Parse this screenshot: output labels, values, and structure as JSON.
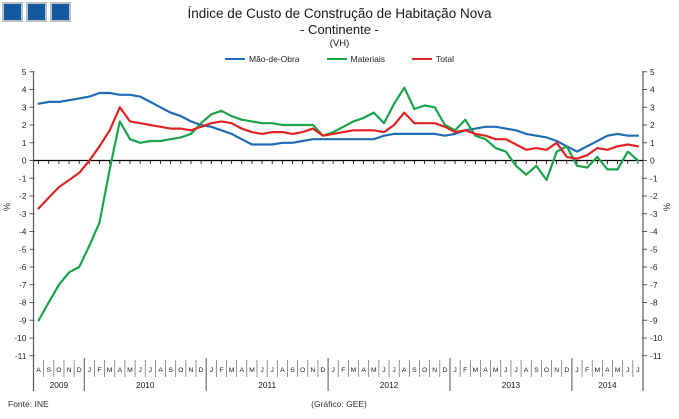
{
  "logo": {
    "square_color": "#14599e",
    "square_border_color": "#b6c2cc",
    "count": 3
  },
  "title": {
    "line1": "Índice de Custo de Construção de Habitação Nova",
    "line2": "- Continente -",
    "line3": "(VH)"
  },
  "footer": {
    "source": "Fonte: INE",
    "credit": "(Gráfico: GEE)"
  },
  "chart_data": {
    "type": "line",
    "title": "Índice de Custo de Construção de Habitação Nova - Continente - (VH)",
    "ylabel": "%",
    "ylim": [
      -11,
      5
    ],
    "ytick_step": 1,
    "grid": false,
    "legend_position": "top",
    "axis_color": "#595959",
    "zero_line_color": "#000000",
    "x_axis": {
      "months": [
        "A",
        "S",
        "O",
        "N",
        "D",
        "J",
        "F",
        "M",
        "A",
        "M",
        "J",
        "J",
        "A",
        "S",
        "O",
        "N",
        "D",
        "J",
        "F",
        "M",
        "A",
        "M",
        "J",
        "J",
        "A",
        "S",
        "O",
        "N",
        "D",
        "J",
        "F",
        "M",
        "A",
        "M",
        "J",
        "J",
        "A",
        "S",
        "O",
        "N",
        "D",
        "J",
        "F",
        "M",
        "A",
        "M",
        "J",
        "J",
        "A",
        "S",
        "O",
        "N",
        "D",
        "J",
        "F",
        "M",
        "A",
        "M",
        "J",
        "J"
      ],
      "years": [
        {
          "label": "2009",
          "months": 5
        },
        {
          "label": "2010",
          "months": 12
        },
        {
          "label": "2011",
          "months": 12
        },
        {
          "label": "2012",
          "months": 12
        },
        {
          "label": "2013",
          "months": 12
        },
        {
          "label": "2014",
          "months": 7
        }
      ]
    },
    "series": [
      {
        "name": "Mão-de-Obra",
        "color": "#1F6CB4",
        "values": [
          3.2,
          3.3,
          3.3,
          3.4,
          3.5,
          3.6,
          3.8,
          3.8,
          3.7,
          3.7,
          3.6,
          3.3,
          3.0,
          2.7,
          2.5,
          2.2,
          2.0,
          1.9,
          1.7,
          1.5,
          1.2,
          0.9,
          0.9,
          0.9,
          1.0,
          1.0,
          1.1,
          1.2,
          1.2,
          1.2,
          1.2,
          1.2,
          1.2,
          1.2,
          1.4,
          1.5,
          1.5,
          1.5,
          1.5,
          1.5,
          1.4,
          1.5,
          1.7,
          1.8,
          1.9,
          1.9,
          1.8,
          1.7,
          1.5,
          1.4,
          1.3,
          1.1,
          0.8,
          0.5,
          0.8,
          1.1,
          1.4,
          1.5,
          1.4,
          1.4
        ]
      },
      {
        "name": "Materiais",
        "color": "#1AA34A",
        "values": [
          -9.0,
          -8.0,
          -7.0,
          -6.3,
          -6.0,
          -4.8,
          -3.5,
          -0.5,
          2.2,
          1.2,
          1.0,
          1.1,
          1.1,
          1.2,
          1.3,
          1.5,
          2.1,
          2.6,
          2.8,
          2.5,
          2.3,
          2.2,
          2.1,
          2.1,
          2.0,
          2.0,
          2.0,
          2.0,
          1.4,
          1.6,
          1.9,
          2.2,
          2.4,
          2.7,
          2.1,
          3.2,
          4.1,
          2.9,
          3.1,
          3.0,
          2.0,
          1.7,
          2.3,
          1.4,
          1.2,
          0.7,
          0.5,
          -0.3,
          -0.8,
          -0.3,
          -1.1,
          0.5,
          0.8,
          -0.3,
          -0.4,
          0.2,
          -0.5,
          -0.5,
          0.5,
          0.0
        ]
      },
      {
        "name": "Total",
        "color": "#E02424",
        "values": [
          -2.7,
          -2.1,
          -1.5,
          -1.1,
          -0.7,
          0.0,
          0.8,
          1.7,
          3.0,
          2.2,
          2.1,
          2.0,
          1.9,
          1.8,
          1.8,
          1.7,
          1.9,
          2.1,
          2.2,
          2.1,
          1.8,
          1.6,
          1.5,
          1.6,
          1.6,
          1.5,
          1.6,
          1.8,
          1.4,
          1.5,
          1.6,
          1.7,
          1.7,
          1.7,
          1.6,
          2.0,
          2.7,
          2.1,
          2.1,
          2.1,
          1.9,
          1.6,
          1.7,
          1.5,
          1.4,
          1.2,
          1.2,
          0.9,
          0.6,
          0.7,
          0.6,
          1.0,
          0.2,
          0.1,
          0.3,
          0.7,
          0.6,
          0.8,
          0.9,
          0.8
        ]
      }
    ]
  }
}
